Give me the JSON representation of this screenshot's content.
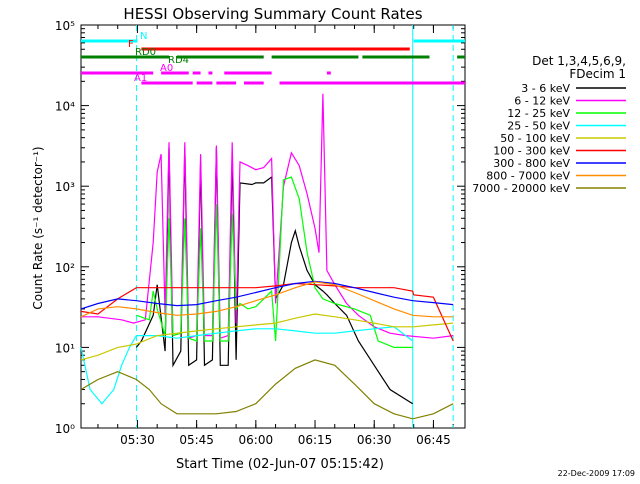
{
  "chart_data": {
    "type": "line",
    "title": "HESSI Observing Summary Count Rates",
    "xlabel": "Start Time (02-Jun-07 05:15:42)",
    "ylabel": "Count Rate (s⁻¹ detector⁻¹)",
    "y_scale": "log",
    "ylim": [
      1,
      100000
    ],
    "y_tick_values": [
      1,
      10,
      100,
      1000,
      10000,
      100000
    ],
    "y_tick_labels": [
      "10⁰",
      "10¹",
      "10²",
      "10³",
      "10⁴",
      "10⁵"
    ],
    "xlim": [
      "05:15:42",
      "06:53:00"
    ],
    "x_tick_labels": [
      "05:30",
      "05:45",
      "06:00",
      "06:15",
      "06:30",
      "06:45"
    ],
    "legend_placement": "right",
    "legend_header": [
      "Det 1,3,4,5,6,9,",
      "FDecim 1"
    ],
    "timestamp": "22-Dec-2009 17:09",
    "flag_labels": [
      "N",
      "F",
      "RD0",
      "RD4",
      "A0",
      "A1"
    ],
    "vertical_markers": [
      {
        "time": "05:29:45",
        "color": "#00ffff",
        "style": "dashed"
      },
      {
        "time": "06:39:45",
        "color": "#00ffff",
        "style": "solid"
      },
      {
        "time": "06:50:00",
        "color": "#00ffff",
        "style": "dashed"
      }
    ],
    "flags": [
      {
        "name": "N",
        "color": "#00ffff",
        "segments": [
          [
            "05:15:42",
            "05:30"
          ],
          [
            "06:40",
            "06:53"
          ]
        ]
      },
      {
        "name": "F",
        "color": "#ff0000",
        "segments": [
          [
            "05:31",
            "06:39"
          ]
        ]
      },
      {
        "name": "RD0",
        "color": "#008000",
        "segments": [
          [
            "05:15:42",
            "05:38"
          ],
          [
            "05:40",
            "06:02"
          ],
          [
            "06:04",
            "06:26"
          ],
          [
            "06:27",
            "06:44"
          ],
          [
            "06:51",
            "06:53"
          ]
        ]
      },
      {
        "name": "RD4",
        "color": "#008000",
        "segments": []
      },
      {
        "name": "A0",
        "color": "#ff00ff",
        "segments": [
          [
            "05:15:42",
            "05:34"
          ],
          [
            "05:36",
            "05:43"
          ],
          [
            "05:44",
            "05:46"
          ],
          [
            "05:48",
            "05:49"
          ],
          [
            "05:52",
            "06:04"
          ],
          [
            "06:18",
            "06:19"
          ]
        ]
      },
      {
        "name": "A1",
        "color": "#ff00ff",
        "segments": [
          [
            "05:31",
            "05:44"
          ],
          [
            "05:45",
            "05:49"
          ],
          [
            "05:50",
            "05:55"
          ],
          [
            "05:57",
            "06:02"
          ],
          [
            "06:06",
            "06:53"
          ]
        ]
      }
    ],
    "series": [
      {
        "name": "3 - 6 keV",
        "color": "#000000",
        "points": [
          [
            "05:29:45",
            10
          ],
          [
            "05:31",
            12
          ],
          [
            "05:34",
            25
          ],
          [
            "05:35",
            60
          ],
          [
            "05:37",
            9
          ],
          [
            "05:38",
            3000
          ],
          [
            "05:39",
            6
          ],
          [
            "05:41",
            9
          ],
          [
            "05:42",
            3000
          ],
          [
            "05:43",
            6
          ],
          [
            "05:45",
            7
          ],
          [
            "05:46",
            2000
          ],
          [
            "05:47",
            6
          ],
          [
            "05:49",
            7
          ],
          [
            "05:50",
            3000
          ],
          [
            "05:51",
            6
          ],
          [
            "05:53",
            6
          ],
          [
            "05:54",
            2400
          ],
          [
            "05:55",
            7
          ],
          [
            "05:56",
            1100
          ],
          [
            "05:59",
            1050
          ],
          [
            "06:00",
            1100
          ],
          [
            "06:02",
            1100
          ],
          [
            "06:04",
            1300
          ],
          [
            "06:05",
            40
          ],
          [
            "06:07",
            60
          ],
          [
            "06:09",
            200
          ],
          [
            "06:10",
            280
          ],
          [
            "06:11",
            180
          ],
          [
            "06:13",
            90
          ],
          [
            "06:15",
            60
          ],
          [
            "06:17",
            50
          ],
          [
            "06:18",
            45
          ],
          [
            "06:20",
            35
          ],
          [
            "06:23",
            25
          ],
          [
            "06:26",
            12
          ],
          [
            "06:30",
            6
          ],
          [
            "06:34",
            3
          ],
          [
            "06:39:45",
            2
          ]
        ]
      },
      {
        "name": "6 - 12 keV",
        "color": "#ff00ff",
        "points": [
          [
            "05:15:42",
            24
          ],
          [
            "05:20",
            24
          ],
          [
            "05:26",
            22
          ],
          [
            "05:29",
            20
          ],
          [
            "05:32",
            22
          ],
          [
            "05:34",
            200
          ],
          [
            "05:35",
            1500
          ],
          [
            "05:36",
            2500
          ],
          [
            "05:37",
            25
          ],
          [
            "05:38",
            3500
          ],
          [
            "05:39",
            14
          ],
          [
            "05:41",
            15
          ],
          [
            "05:42",
            3500
          ],
          [
            "05:43",
            13
          ],
          [
            "05:45",
            14
          ],
          [
            "05:46",
            2500
          ],
          [
            "05:47",
            14
          ],
          [
            "05:49",
            14
          ],
          [
            "05:50",
            3200
          ],
          [
            "05:51",
            13
          ],
          [
            "05:53",
            14
          ],
          [
            "05:54",
            3500
          ],
          [
            "05:55",
            20
          ],
          [
            "05:56",
            2000
          ],
          [
            "05:58",
            1800
          ],
          [
            "06:00",
            1600
          ],
          [
            "06:02",
            1700
          ],
          [
            "06:04",
            2200
          ],
          [
            "06:05",
            35
          ],
          [
            "06:07",
            1000
          ],
          [
            "06:09",
            2600
          ],
          [
            "06:11",
            1800
          ],
          [
            "06:13",
            800
          ],
          [
            "06:15",
            300
          ],
          [
            "06:16",
            150
          ],
          [
            "06:17",
            14000
          ],
          [
            "06:18",
            90
          ],
          [
            "06:20",
            60
          ],
          [
            "06:23",
            35
          ],
          [
            "06:26",
            25
          ],
          [
            "06:30",
            18
          ],
          [
            "06:34",
            15
          ],
          [
            "06:38",
            14
          ],
          [
            "06:45",
            13
          ],
          [
            "06:50",
            14
          ]
        ]
      },
      {
        "name": "12 - 25 keV",
        "color": "#00ff00",
        "points": [
          [
            "05:29:45",
            25
          ],
          [
            "05:33",
            22
          ],
          [
            "05:34",
            50
          ],
          [
            "05:35",
            30
          ],
          [
            "05:37",
            14
          ],
          [
            "05:38",
            400
          ],
          [
            "05:39",
            14
          ],
          [
            "05:41",
            15
          ],
          [
            "05:42",
            400
          ],
          [
            "05:43",
            13
          ],
          [
            "05:45",
            12
          ],
          [
            "05:46",
            300
          ],
          [
            "05:47",
            12
          ],
          [
            "05:49",
            12
          ],
          [
            "05:50",
            600
          ],
          [
            "05:51",
            12
          ],
          [
            "05:53",
            12
          ],
          [
            "05:54",
            450
          ],
          [
            "05:55",
            30
          ],
          [
            "05:56",
            35
          ],
          [
            "05:58",
            30
          ],
          [
            "06:00",
            32
          ],
          [
            "06:02",
            40
          ],
          [
            "06:04",
            50
          ],
          [
            "06:05",
            12
          ],
          [
            "06:07",
            1200
          ],
          [
            "06:09",
            1300
          ],
          [
            "06:11",
            700
          ],
          [
            "06:13",
            150
          ],
          [
            "06:15",
            55
          ],
          [
            "06:17",
            40
          ],
          [
            "06:20",
            35
          ],
          [
            "06:25",
            30
          ],
          [
            "06:29",
            25
          ],
          [
            "06:31",
            12
          ],
          [
            "06:35",
            10
          ],
          [
            "06:39:45",
            10
          ]
        ]
      },
      {
        "name": "25 - 50 keV",
        "color": "#00ffff",
        "points": [
          [
            "05:15:42",
            10
          ],
          [
            "05:18",
            3
          ],
          [
            "05:21",
            2
          ],
          [
            "05:24",
            3
          ],
          [
            "05:26",
            6
          ],
          [
            "05:28",
            10
          ],
          [
            "05:29:45",
            14
          ],
          [
            "05:35",
            14
          ],
          [
            "05:40",
            13
          ],
          [
            "05:45",
            14
          ],
          [
            "05:50",
            15
          ],
          [
            "05:55",
            16
          ],
          [
            "06:00",
            17
          ],
          [
            "06:05",
            17
          ],
          [
            "06:10",
            16
          ],
          [
            "06:15",
            15
          ],
          [
            "06:20",
            15
          ],
          [
            "06:25",
            16
          ],
          [
            "06:30",
            17
          ],
          [
            "06:35",
            18
          ],
          [
            "06:39:45",
            12
          ]
        ]
      },
      {
        "name": "50 - 100 keV",
        "color": "#c8c800",
        "points": [
          [
            "05:15:42",
            7
          ],
          [
            "05:20",
            8
          ],
          [
            "05:25",
            10
          ],
          [
            "05:29:45",
            11
          ],
          [
            "05:35",
            14
          ],
          [
            "05:40",
            15
          ],
          [
            "05:45",
            16
          ],
          [
            "05:50",
            17
          ],
          [
            "05:55",
            18
          ],
          [
            "06:00",
            19
          ],
          [
            "06:05",
            20
          ],
          [
            "06:10",
            23
          ],
          [
            "06:15",
            26
          ],
          [
            "06:20",
            24
          ],
          [
            "06:25",
            22
          ],
          [
            "06:30",
            20
          ],
          [
            "06:35",
            18
          ],
          [
            "06:40",
            18
          ],
          [
            "06:45",
            19
          ],
          [
            "06:50",
            20
          ]
        ]
      },
      {
        "name": "100 - 300 keV",
        "color": "#ff0000",
        "points": [
          [
            "05:15:42",
            28
          ],
          [
            "05:20",
            26
          ],
          [
            "05:25",
            40
          ],
          [
            "05:29:45",
            55
          ],
          [
            "05:35",
            55
          ],
          [
            "05:40",
            55
          ],
          [
            "05:45",
            55
          ],
          [
            "05:50",
            55
          ],
          [
            "05:55",
            55
          ],
          [
            "06:00",
            55
          ],
          [
            "06:05",
            58
          ],
          [
            "06:10",
            62
          ],
          [
            "06:15",
            60
          ],
          [
            "06:20",
            58
          ],
          [
            "06:25",
            55
          ],
          [
            "06:30",
            55
          ],
          [
            "06:35",
            55
          ],
          [
            "06:39:45",
            50
          ],
          [
            "06:40",
            45
          ],
          [
            "06:45",
            42
          ],
          [
            "06:50",
            12
          ]
        ]
      },
      {
        "name": "300 - 800 keV",
        "color": "#0000ff",
        "points": [
          [
            "05:15:42",
            30
          ],
          [
            "05:20",
            35
          ],
          [
            "05:25",
            40
          ],
          [
            "05:29:45",
            38
          ],
          [
            "05:35",
            35
          ],
          [
            "05:40",
            33
          ],
          [
            "05:45",
            34
          ],
          [
            "05:50",
            38
          ],
          [
            "05:55",
            42
          ],
          [
            "06:00",
            48
          ],
          [
            "06:05",
            55
          ],
          [
            "06:10",
            62
          ],
          [
            "06:15",
            66
          ],
          [
            "06:20",
            62
          ],
          [
            "06:25",
            55
          ],
          [
            "06:30",
            48
          ],
          [
            "06:35",
            42
          ],
          [
            "06:39:45",
            38
          ],
          [
            "06:45",
            36
          ],
          [
            "06:50",
            34
          ]
        ]
      },
      {
        "name": "800 - 7000 keV",
        "color": "#ff8c00",
        "points": [
          [
            "05:15:42",
            24
          ],
          [
            "05:20",
            30
          ],
          [
            "05:25",
            32
          ],
          [
            "05:29:45",
            30
          ],
          [
            "05:35",
            27
          ],
          [
            "05:40",
            25
          ],
          [
            "05:45",
            26
          ],
          [
            "05:50",
            28
          ],
          [
            "05:55",
            32
          ],
          [
            "06:00",
            38
          ],
          [
            "06:05",
            45
          ],
          [
            "06:10",
            55
          ],
          [
            "06:15",
            65
          ],
          [
            "06:20",
            60
          ],
          [
            "06:25",
            48
          ],
          [
            "06:30",
            38
          ],
          [
            "06:35",
            30
          ],
          [
            "06:39:45",
            25
          ],
          [
            "06:45",
            24
          ],
          [
            "06:50",
            24
          ]
        ]
      },
      {
        "name": "7000 - 20000 keV",
        "color": "#808000",
        "points": [
          [
            "05:15:42",
            3
          ],
          [
            "05:20",
            4
          ],
          [
            "05:25",
            5
          ],
          [
            "05:29:45",
            4
          ],
          [
            "05:33",
            3
          ],
          [
            "05:36",
            2
          ],
          [
            "05:40",
            1.5
          ],
          [
            "05:45",
            1.5
          ],
          [
            "05:50",
            1.5
          ],
          [
            "05:55",
            1.6
          ],
          [
            "06:00",
            2
          ],
          [
            "06:05",
            3.5
          ],
          [
            "06:10",
            5.5
          ],
          [
            "06:15",
            7
          ],
          [
            "06:20",
            6
          ],
          [
            "06:25",
            3.5
          ],
          [
            "06:30",
            2
          ],
          [
            "06:35",
            1.5
          ],
          [
            "06:39:45",
            1.3
          ],
          [
            "06:45",
            1.5
          ],
          [
            "06:50",
            2
          ]
        ]
      }
    ]
  }
}
